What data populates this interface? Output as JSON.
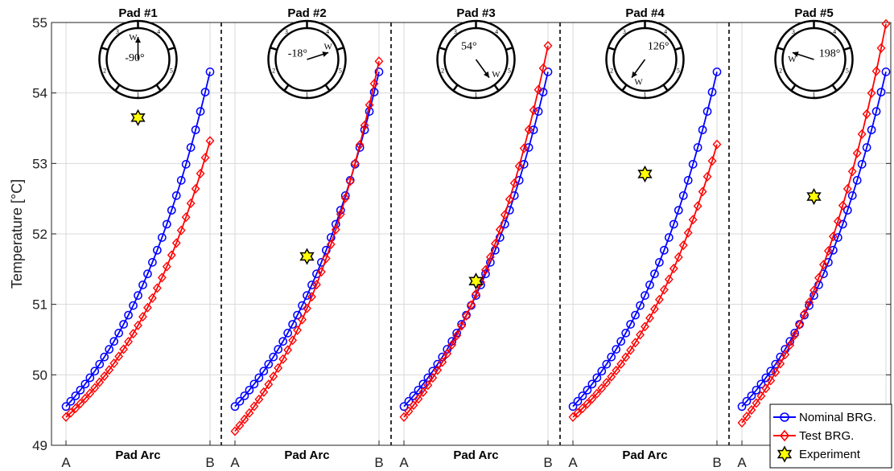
{
  "chart_data": {
    "type": "line",
    "ylabel": "Temperature [°C]",
    "ylim": [
      49,
      55
    ],
    "yticks": [
      49,
      50,
      51,
      52,
      53,
      54,
      55
    ],
    "xlabel": "Pad Arc",
    "arc_start_label": "A",
    "arc_end_label": "B",
    "grid": true,
    "legend": {
      "placement": "bottom-right",
      "entries": [
        "Nominal BRG.",
        "Test BRG.",
        "Experiment"
      ]
    },
    "colors": {
      "nominal": "#0000ff",
      "test": "#ff0000",
      "experiment": "#ffff00"
    },
    "pad_numbers": [
      "1",
      "2",
      "3",
      "4",
      "5"
    ],
    "pads": [
      {
        "title": "Pad #1",
        "load_angle": "-90°",
        "angle_deg": -90,
        "load_mark": "W",
        "nominal": {
          "start": 49.55,
          "end": 54.3
        },
        "test": {
          "start": 49.4,
          "end": 53.32
        },
        "experiment": {
          "position": 0.5,
          "value": 53.65
        }
      },
      {
        "title": "Pad #2",
        "load_angle": "-18°",
        "angle_deg": -18,
        "load_mark": "W",
        "nominal": {
          "start": 49.55,
          "end": 54.3
        },
        "test": {
          "start": 49.2,
          "end": 54.45
        },
        "experiment": {
          "position": 0.5,
          "value": 51.68
        }
      },
      {
        "title": "Pad #3",
        "load_angle": "54°",
        "angle_deg": 54,
        "load_mark": "W",
        "nominal": {
          "start": 49.55,
          "end": 54.3
        },
        "test": {
          "start": 49.4,
          "end": 54.67
        },
        "experiment": {
          "position": 0.5,
          "value": 51.33
        }
      },
      {
        "title": "Pad #4",
        "load_angle": "126°",
        "angle_deg": 126,
        "load_mark": "W",
        "nominal": {
          "start": 49.55,
          "end": 54.3
        },
        "test": {
          "start": 49.4,
          "end": 53.27
        },
        "experiment": {
          "position": 0.5,
          "value": 52.85
        }
      },
      {
        "title": "Pad #5",
        "load_angle": "198°",
        "angle_deg": 198,
        "load_mark": "W",
        "nominal": {
          "start": 49.55,
          "end": 54.3
        },
        "test": {
          "start": 49.32,
          "end": 54.98
        },
        "experiment": {
          "position": 0.5,
          "value": 52.53
        }
      }
    ]
  }
}
